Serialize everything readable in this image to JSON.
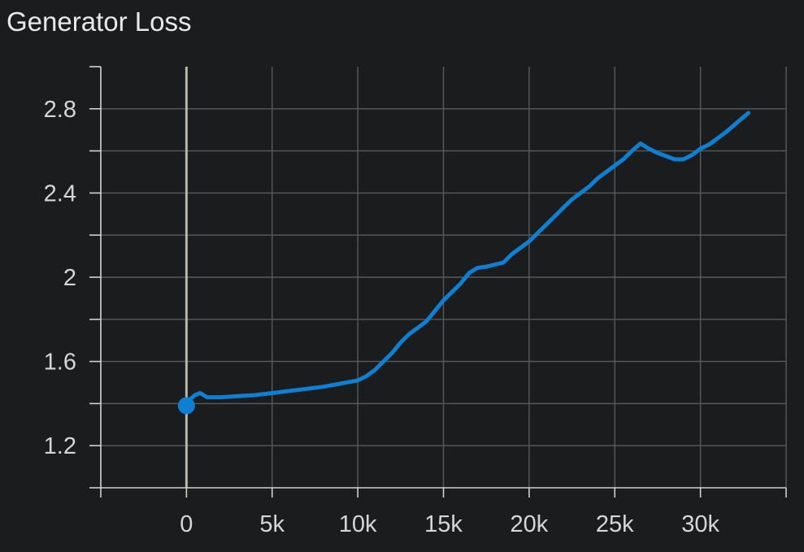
{
  "chart_data": {
    "type": "line",
    "title": "Generator Loss",
    "xlabel": "",
    "ylabel": "",
    "xlim": [
      -5000,
      35000
    ],
    "ylim": [
      1.0,
      3.0
    ],
    "x_ticks": [
      0,
      5000,
      10000,
      15000,
      20000,
      25000,
      30000
    ],
    "x_tick_labels": [
      "0",
      "5k",
      "10k",
      "15k",
      "20k",
      "25k",
      "30k"
    ],
    "y_ticks": [
      1.2,
      1.6,
      2.0,
      2.4,
      2.8
    ],
    "y_tick_labels": [
      "1.2",
      "1.6",
      "2",
      "2.4",
      "2.8"
    ],
    "grid": true,
    "colors": {
      "line": "#0f7fd1",
      "grid": "#5a5a5a",
      "axis": "#d0d0d0",
      "zero_line": "#b9b4a8",
      "background": "#1b1c1e"
    },
    "series": [
      {
        "points": [
          [
            0,
            1.39
          ],
          [
            200,
            1.42
          ],
          [
            500,
            1.44
          ],
          [
            800,
            1.45
          ],
          [
            1200,
            1.43
          ],
          [
            2000,
            1.43
          ],
          [
            3000,
            1.435
          ],
          [
            4000,
            1.44
          ],
          [
            5000,
            1.45
          ],
          [
            6000,
            1.46
          ],
          [
            7000,
            1.47
          ],
          [
            8000,
            1.48
          ],
          [
            9000,
            1.495
          ],
          [
            10000,
            1.51
          ],
          [
            10500,
            1.53
          ],
          [
            11000,
            1.56
          ],
          [
            11500,
            1.6
          ],
          [
            12000,
            1.64
          ],
          [
            12500,
            1.69
          ],
          [
            13000,
            1.73
          ],
          [
            13500,
            1.76
          ],
          [
            14000,
            1.79
          ],
          [
            14500,
            1.84
          ],
          [
            15000,
            1.89
          ],
          [
            15500,
            1.93
          ],
          [
            16000,
            1.97
          ],
          [
            16500,
            2.02
          ],
          [
            17000,
            2.045
          ],
          [
            17500,
            2.05
          ],
          [
            18000,
            2.06
          ],
          [
            18500,
            2.07
          ],
          [
            19000,
            2.11
          ],
          [
            19500,
            2.14
          ],
          [
            20000,
            2.17
          ],
          [
            20500,
            2.21
          ],
          [
            21000,
            2.25
          ],
          [
            21500,
            2.29
          ],
          [
            22000,
            2.33
          ],
          [
            22500,
            2.37
          ],
          [
            23000,
            2.4
          ],
          [
            23500,
            2.43
          ],
          [
            24000,
            2.47
          ],
          [
            24500,
            2.5
          ],
          [
            25000,
            2.53
          ],
          [
            25500,
            2.56
          ],
          [
            26000,
            2.6
          ],
          [
            26500,
            2.635
          ],
          [
            27000,
            2.61
          ],
          [
            27500,
            2.59
          ],
          [
            28000,
            2.575
          ],
          [
            28500,
            2.56
          ],
          [
            29000,
            2.56
          ],
          [
            29500,
            2.58
          ],
          [
            30000,
            2.61
          ],
          [
            30500,
            2.63
          ],
          [
            31000,
            2.66
          ],
          [
            31500,
            2.69
          ],
          [
            32000,
            2.725
          ],
          [
            32500,
            2.76
          ],
          [
            32800,
            2.78
          ]
        ]
      }
    ]
  }
}
